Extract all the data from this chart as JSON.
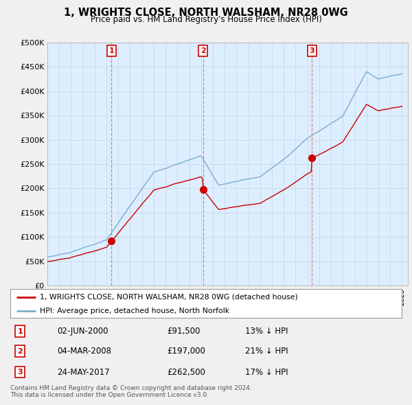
{
  "title": "1, WRIGHTS CLOSE, NORTH WALSHAM, NR28 0WG",
  "subtitle": "Price paid vs. HM Land Registry's House Price Index (HPI)",
  "ylim": [
    0,
    500000
  ],
  "yticks": [
    0,
    50000,
    100000,
    150000,
    200000,
    250000,
    300000,
    350000,
    400000,
    450000,
    500000
  ],
  "ytick_labels": [
    "£0",
    "£50K",
    "£100K",
    "£150K",
    "£200K",
    "£250K",
    "£300K",
    "£350K",
    "£400K",
    "£450K",
    "£500K"
  ],
  "sales": [
    {
      "date_num": 2000.42,
      "price": 91500,
      "label": "1"
    },
    {
      "date_num": 2008.17,
      "price": 197000,
      "label": "2"
    },
    {
      "date_num": 2017.39,
      "price": 262500,
      "label": "3"
    }
  ],
  "sale_color": "#cc0000",
  "hpi_color": "#7aadcf",
  "vline_color": "#e08080",
  "plot_bg": "#ddeeff",
  "background_color": "#f0f0f0",
  "legend_entries": [
    "1, WRIGHTS CLOSE, NORTH WALSHAM, NR28 0WG (detached house)",
    "HPI: Average price, detached house, North Norfolk"
  ],
  "table_rows": [
    [
      "1",
      "02-JUN-2000",
      "£91,500",
      "13% ↓ HPI"
    ],
    [
      "2",
      "04-MAR-2008",
      "£197,000",
      "21% ↓ HPI"
    ],
    [
      "3",
      "24-MAY-2017",
      "£262,500",
      "17% ↓ HPI"
    ]
  ],
  "footer": "Contains HM Land Registry data © Crown copyright and database right 2024.\nThis data is licensed under the Open Government Licence v3.0."
}
